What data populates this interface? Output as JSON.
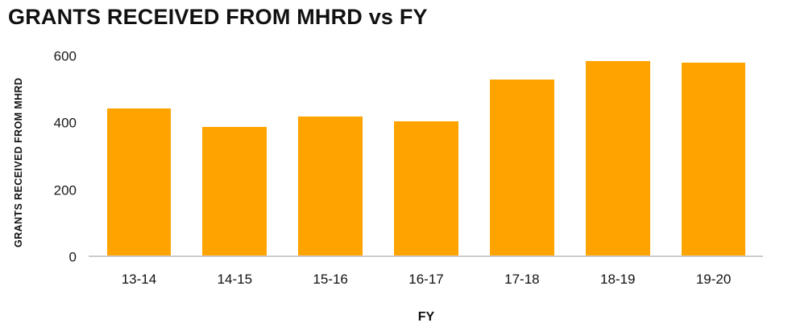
{
  "chart_data": {
    "type": "bar",
    "title": "GRANTS RECEIVED FROM MHRD vs FY",
    "xlabel": "FY",
    "ylabel": "GRANTS RECEIVED FROM MHRD",
    "categories": [
      "13-14",
      "14-15",
      "15-16",
      "16-17",
      "17-18",
      "18-19",
      "19-20"
    ],
    "values": [
      445,
      390,
      420,
      405,
      530,
      585,
      580
    ],
    "ylim": [
      0,
      600
    ],
    "yticks": [
      0,
      200,
      400,
      600
    ],
    "grid": false,
    "legend": "none",
    "bar_color": "#FFA300"
  },
  "colors": {
    "bar": "#FFA300",
    "axis_line": "#cccccc",
    "text": "#111111"
  }
}
